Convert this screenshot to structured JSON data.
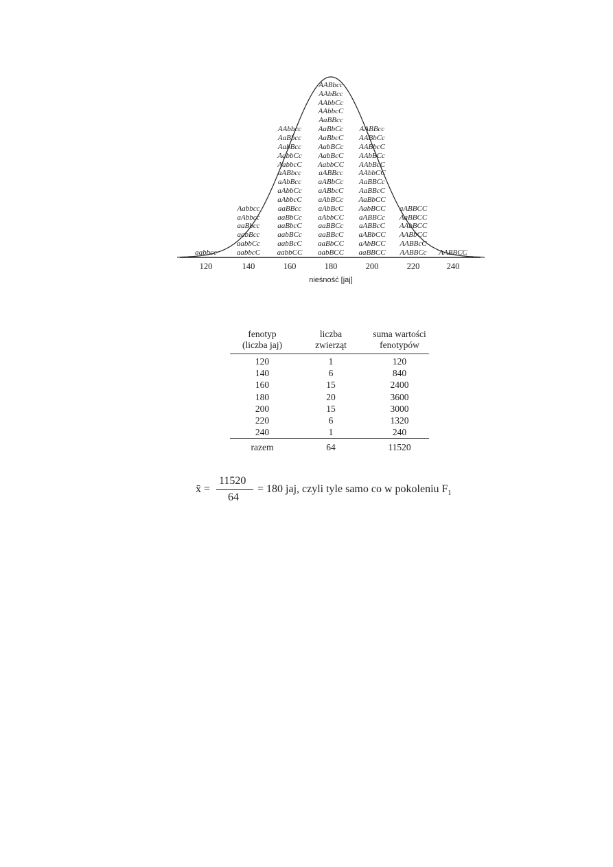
{
  "diagram": {
    "axis_title": "nieśność [jaj]",
    "columns": [
      {
        "value": "120",
        "genotypes": [
          "aabbcc"
        ]
      },
      {
        "value": "140",
        "genotypes": [
          "Aabbcc",
          "aAbbcc",
          "aaBbcc",
          "aabBcc",
          "aabbCc",
          "aabbcC"
        ]
      },
      {
        "value": "160",
        "genotypes": [
          "AAbbcc",
          "AaBbcc",
          "AabBcc",
          "AabbCc",
          "AabbcC",
          "aABbcc",
          "aAbBcc",
          "aAbbCc",
          "aAbbcC",
          "aaBBcc",
          "aaBbCc",
          "aaBbcC",
          "aabBCc",
          "aabBcC",
          "aabbCC"
        ]
      },
      {
        "value": "180",
        "genotypes": [
          "AABbcc",
          "AAbBcc",
          "AAbbCc",
          "AAbbcC",
          "AaBBcc",
          "AaBbCc",
          "AaBbcC",
          "AabBCc",
          "AabBcC",
          "AabbCC",
          "aABBcc",
          "aABbCc",
          "aABbcC",
          "aAbBCc",
          "aAbBcC",
          "aAbbCC",
          "aaBBCc",
          "aaBBcC",
          "aaBbCC",
          "aabBCC"
        ]
      },
      {
        "value": "200",
        "genotypes": [
          "AABBcc",
          "AABbCc",
          "AABbcC",
          "AAbBCc",
          "AAbBcC",
          "AAbbCC",
          "AaBBCc",
          "AaBBcC",
          "AaBbCC",
          "AabBCC",
          "aABBCc",
          "aABBcC",
          "aABbCC",
          "aAbBCC",
          "aaBBCC"
        ]
      },
      {
        "value": "220",
        "genotypes": [
          "aABBCC",
          "AaBBCC",
          "AAbBCC",
          "AABbCC",
          "AABBcC",
          "AABBCc"
        ]
      },
      {
        "value": "240",
        "genotypes": [
          "AABBCC"
        ]
      }
    ]
  },
  "table": {
    "headers": [
      "fenotyp\n(liczba jaj)",
      "liczba\nzwierząt",
      "suma wartości\nfenotypów"
    ],
    "rows": [
      [
        "120",
        "1",
        "120"
      ],
      [
        "140",
        "6",
        "840"
      ],
      [
        "160",
        "15",
        "2400"
      ],
      [
        "180",
        "20",
        "3600"
      ],
      [
        "200",
        "15",
        "3000"
      ],
      [
        "220",
        "6",
        "1320"
      ],
      [
        "240",
        "1",
        "240"
      ]
    ],
    "total": [
      "razem",
      "64",
      "11520"
    ]
  },
  "formula": {
    "lhs": "x̄ =",
    "numerator": "11520",
    "denominator": "64",
    "rhs": "= 180 jaj, czyli tyle samo co w pokoleniu F",
    "subscript": "1"
  }
}
